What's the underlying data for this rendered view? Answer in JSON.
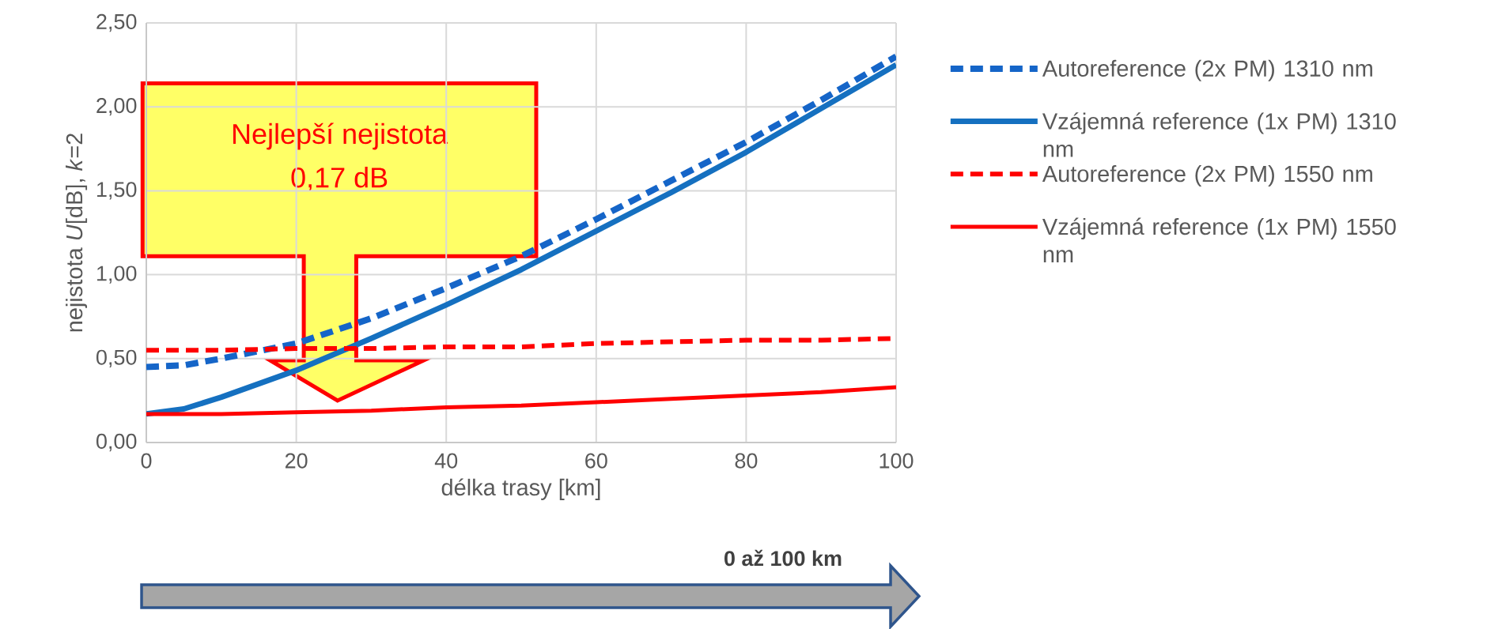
{
  "chart_data": {
    "type": "line",
    "xlabel": "délka trasy [km]",
    "ylabel": "nejistota *U*[dB], *k*=2",
    "xlim": [
      0,
      100
    ],
    "ylim": [
      0,
      2.5
    ],
    "xticks": [
      0,
      20,
      40,
      60,
      80,
      100
    ],
    "yticks": [
      {
        "value": 0,
        "label": "0,00"
      },
      {
        "value": 0.5,
        "label": "0,50"
      },
      {
        "value": 1,
        "label": "1,00"
      },
      {
        "value": 1.5,
        "label": "1,50"
      },
      {
        "value": 2,
        "label": "2,00"
      },
      {
        "value": 2.5,
        "label": "2,50"
      }
    ],
    "grid": true,
    "legend": "right",
    "x": [
      0,
      5,
      10,
      20,
      30,
      40,
      50,
      60,
      70,
      80,
      90,
      100
    ],
    "series": [
      {
        "name": "Autoreference (2x PM) 1310 nm",
        "color": "#1565c8",
        "line_style": "dashed",
        "values": [
          0.45,
          0.46,
          0.5,
          0.59,
          0.74,
          0.92,
          1.11,
          1.33,
          1.56,
          1.79,
          2.04,
          2.3
        ]
      },
      {
        "name": "Vzájemná reference (1x PM) 1310 nm",
        "color": "#1570c0",
        "line_style": "solid",
        "values": [
          0.17,
          0.2,
          0.27,
          0.43,
          0.62,
          0.82,
          1.03,
          1.26,
          1.49,
          1.73,
          1.99,
          2.25
        ]
      },
      {
        "name": "Autoreference (2x PM) 1550 nm",
        "color": "#ff0000",
        "line_style": "dashed",
        "values": [
          0.55,
          0.55,
          0.55,
          0.56,
          0.56,
          0.57,
          0.57,
          0.59,
          0.6,
          0.61,
          0.61,
          0.62
        ]
      },
      {
        "name": "Vzájemná reference (1x PM) 1550 nm",
        "color": "#ff0000",
        "line_style": "solid",
        "values": [
          0.17,
          0.17,
          0.17,
          0.18,
          0.19,
          0.21,
          0.22,
          0.24,
          0.26,
          0.28,
          0.3,
          0.33
        ]
      }
    ],
    "annotations": [
      "Nejlepší nejistota",
      "0,17 dB",
      "0 až 100 km"
    ]
  }
}
